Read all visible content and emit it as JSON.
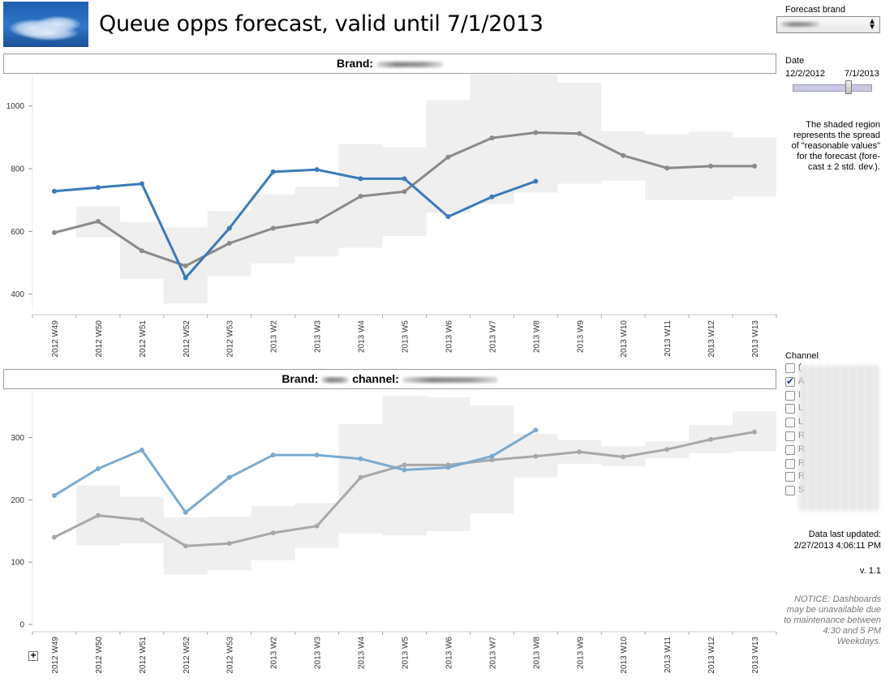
{
  "header": {
    "title": "Queue opps forecast, valid until 7/1/2013"
  },
  "top_panel": {
    "brand_label": "Brand:"
  },
  "bottom_panel": {
    "brand_label": "Brand:",
    "channel_label": "channel:"
  },
  "sidebar": {
    "forecast_brand_label": "Forecast brand",
    "date_label": "Date",
    "date_start": "12/2/2012",
    "date_end": "7/1/2013",
    "date_slider_position": 0.72,
    "shaded_note": "The shaded region represents the spread of \"reasonable values\" for the forecast (forecast ± 2 std. dev.).",
    "shaded_note_lines": [
      "The shaded region",
      "represents the spread",
      "of \"reasonable values\"",
      "for the forecast (fore-",
      "cast ± 2 std. dev.)."
    ],
    "channel_label": "Channel",
    "channel_items": [
      {
        "label": "(",
        "checked": false
      },
      {
        "label": "A",
        "checked": true
      },
      {
        "label": "I",
        "checked": false
      },
      {
        "label": "L",
        "checked": false
      },
      {
        "label": "L",
        "checked": false
      },
      {
        "label": "R",
        "checked": false
      },
      {
        "label": "R",
        "checked": false
      },
      {
        "label": "R",
        "checked": false
      },
      {
        "label": "R",
        "checked": false
      },
      {
        "label": "S",
        "checked": false
      }
    ],
    "data_updated_label": "Data last updated:",
    "data_updated_value": "2/27/2013 4:06:11 PM",
    "version": "v. 1.1",
    "notice_lines": [
      "NOTICE: Dashboards",
      "may be unavailable due",
      "to maintenance between",
      "4:30 and 5 PM Weekdays."
    ]
  },
  "chart_data": [
    {
      "type": "line",
      "categories": [
        "2012 W49",
        "2012 W50",
        "2012 W51",
        "2012 W52",
        "2012 W53",
        "2013 W2",
        "2013 W3",
        "2013 W4",
        "2013 W5",
        "2013 W6",
        "2013 W7",
        "2013 W8",
        "2013 W9",
        "2013 W10",
        "2013 W11",
        "2013 W12",
        "2013 W13"
      ],
      "ylim": [
        350,
        1100
      ],
      "yticks": [
        400,
        600,
        800,
        1000
      ],
      "grid": false,
      "colors": {
        "actual": "#3a7ab8",
        "forecast": "#8a8a8a",
        "band": "#efefef"
      },
      "series": [
        {
          "values": [
            728,
            740,
            752,
            452,
            610,
            790,
            797,
            768,
            768,
            647,
            710,
            760,
            null,
            null,
            null,
            null,
            null
          ]
        },
        {
          "values": [
            596,
            632,
            538,
            490,
            562,
            610,
            632,
            712,
            727,
            837,
            898,
            915,
            912,
            842,
            802,
            808,
            808
          ]
        }
      ],
      "band": {
        "lower": [
          null,
          582,
          448,
          370,
          457,
          498,
          520,
          548,
          585,
          660,
          688,
          724,
          752,
          762,
          700,
          700,
          712
        ],
        "upper": [
          null,
          680,
          630,
          612,
          665,
          718,
          742,
          878,
          868,
          1018,
          1115,
          1115,
          1075,
          920,
          910,
          918,
          900
        ]
      }
    },
    {
      "type": "line",
      "categories": [
        "2012 W49",
        "2012 W50",
        "2012 W51",
        "2012 W52",
        "2012 W53",
        "2013 W2",
        "2013 W3",
        "2013 W4",
        "2013 W5",
        "2013 W6",
        "2013 W7",
        "2013 W8",
        "2013 W9",
        "2013 W10",
        "2013 W11",
        "2013 W12",
        "2013 W13"
      ],
      "ylim": [
        0,
        375
      ],
      "yticks": [
        0,
        100,
        200,
        300
      ],
      "grid": false,
      "colors": {
        "actual": "#7aaad0",
        "forecast": "#a8a8a8",
        "band": "#efefef"
      },
      "series": [
        {
          "values": [
            207,
            250,
            280,
            180,
            236,
            272,
            272,
            266,
            248,
            252,
            270,
            312,
            null,
            null,
            null,
            null,
            null
          ]
        },
        {
          "values": [
            140,
            175,
            168,
            126,
            130,
            147,
            158,
            236,
            256,
            256,
            264,
            270,
            277,
            269,
            281,
            297,
            309
          ]
        }
      ],
      "band": {
        "lower": [
          null,
          127,
          130,
          80,
          87,
          103,
          123,
          146,
          143,
          150,
          178,
          236,
          258,
          254,
          267,
          275,
          278
        ],
        "upper": [
          null,
          223,
          205,
          172,
          173,
          190,
          195,
          322,
          367,
          365,
          352,
          306,
          296,
          286,
          294,
          320,
          342
        ]
      }
    }
  ]
}
